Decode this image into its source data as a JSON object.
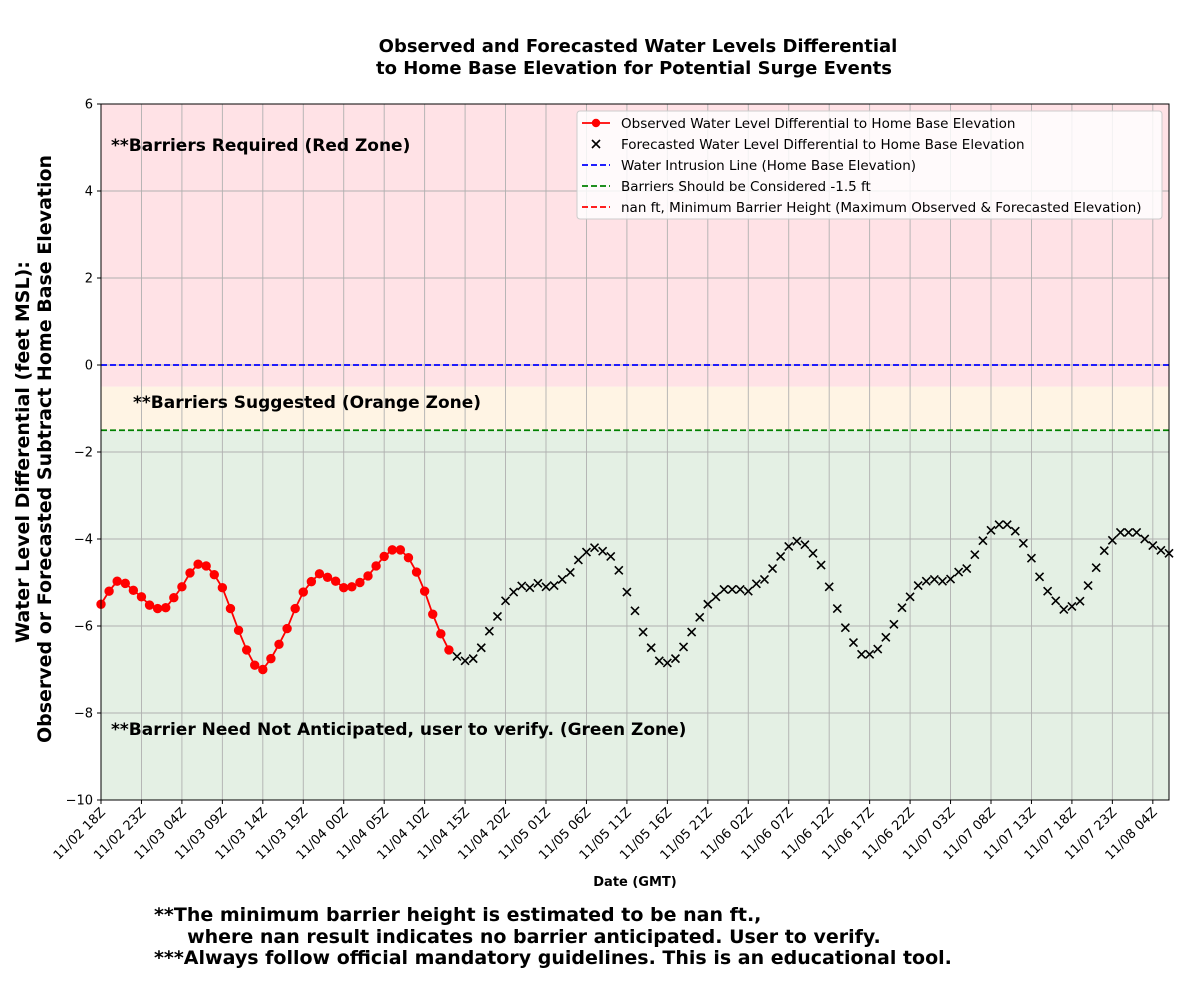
{
  "chart_data": {
    "type": "line",
    "title_lines": [
      "Observed and Forecasted Water Levels Differential",
      "to Home Base Elevation for Potential Surge Events"
    ],
    "xlabel": "Date (GMT)",
    "ylabel_lines": [
      "Water Level Differential (feet MSL):",
      "Observed or Forecasted Subtract Home Base Elevation"
    ],
    "ylim": [
      -10,
      6
    ],
    "yticks": [
      "6",
      "4",
      "2",
      "0",
      "−2",
      "−4",
      "−6",
      "−8",
      "−10"
    ],
    "x_range_hours": [
      0,
      132
    ],
    "xticks": [
      "11/02 18Z",
      "11/02 23Z",
      "11/03 04Z",
      "11/03 09Z",
      "11/03 14Z",
      "11/03 19Z",
      "11/04 00Z",
      "11/04 05Z",
      "11/04 10Z",
      "11/04 15Z",
      "11/04 20Z",
      "11/05 01Z",
      "11/05 06Z",
      "11/05 11Z",
      "11/05 16Z",
      "11/05 21Z",
      "11/06 02Z",
      "11/06 07Z",
      "11/06 12Z",
      "11/06 17Z",
      "11/06 22Z",
      "11/07 03Z",
      "11/07 08Z",
      "11/07 13Z",
      "11/07 18Z",
      "11/07 23Z",
      "11/08 04Z"
    ],
    "grid": true,
    "legend_position": "top-right",
    "zones": [
      {
        "label": "**Barriers Required (Red Zone)",
        "y_from": -0.5,
        "y_to": 6,
        "color": "#ffe2e6"
      },
      {
        "label": "**Barriers Suggested (Orange Zone)",
        "y_from": -1.5,
        "y_to": -0.5,
        "color": "#fff4e4"
      },
      {
        "label": "**Barrier Need Not Anticipated, user to verify. (Green Zone)",
        "y_from": -10,
        "y_to": -1.5,
        "color": "#e4f0e4"
      }
    ],
    "reference_lines": [
      {
        "name": "Water Intrusion Line (Home Base Elevation)",
        "y": 0,
        "color": "#0000ff"
      },
      {
        "name": "Barriers Should be Considered -1.5 ft",
        "y": -1.5,
        "color": "#008000"
      },
      {
        "name": "nan ft, Minimum Barrier Height (Maximum Observed & Forecasted Elevation)",
        "y": null,
        "color": "#ff0000"
      }
    ],
    "series": [
      {
        "name": "Observed Water Level Differential to Home Base Elevation",
        "color": "#ff0000",
        "marker": "circle",
        "x_start_hours": 0,
        "x_step_hours": 1,
        "values": [
          -5.5,
          -5.2,
          -4.97,
          -5.02,
          -5.18,
          -5.33,
          -5.52,
          -5.6,
          -5.58,
          -5.35,
          -5.1,
          -4.78,
          -4.58,
          -4.62,
          -4.82,
          -5.12,
          -5.6,
          -6.1,
          -6.55,
          -6.9,
          -7.0,
          -6.75,
          -6.42,
          -6.06,
          -5.6,
          -5.22,
          -4.98,
          -4.8,
          -4.88,
          -4.97,
          -5.12,
          -5.1,
          -5.0,
          -4.85,
          -4.62,
          -4.4,
          -4.25,
          -4.25,
          -4.43,
          -4.76,
          -5.2,
          -5.73,
          -6.18,
          -6.55
        ]
      },
      {
        "name": "Forecasted Water Level Differential to Home Base Elevation",
        "color": "#000000",
        "marker": "x",
        "x_start_hours": 44,
        "x_step_hours": 1,
        "values": [
          -6.7,
          -6.8,
          -6.75,
          -6.5,
          -6.12,
          -5.78,
          -5.42,
          -5.22,
          -5.08,
          -5.12,
          -5.02,
          -5.1,
          -5.07,
          -4.93,
          -4.77,
          -4.48,
          -4.3,
          -4.2,
          -4.28,
          -4.4,
          -4.72,
          -5.22,
          -5.65,
          -6.14,
          -6.5,
          -6.8,
          -6.85,
          -6.75,
          -6.48,
          -6.14,
          -5.8,
          -5.5,
          -5.33,
          -5.16,
          -5.16,
          -5.16,
          -5.2,
          -5.03,
          -4.93,
          -4.68,
          -4.4,
          -4.17,
          -4.05,
          -4.13,
          -4.33,
          -4.6,
          -5.1,
          -5.6,
          -6.04,
          -6.38,
          -6.65,
          -6.65,
          -6.53,
          -6.26,
          -5.96,
          -5.58,
          -5.33,
          -5.07,
          -4.97,
          -4.93,
          -4.97,
          -4.92,
          -4.76,
          -4.68,
          -4.36,
          -4.04,
          -3.8,
          -3.67,
          -3.67,
          -3.82,
          -4.1,
          -4.44,
          -4.87,
          -5.2,
          -5.42,
          -5.62,
          -5.55,
          -5.43,
          -5.07,
          -4.66,
          -4.27,
          -4.03,
          -3.85,
          -3.85,
          -3.85,
          -4.0,
          -4.15,
          -4.26,
          -4.33
        ]
      }
    ]
  },
  "footnotes": [
    "**The minimum barrier height is estimated to be nan ft.,",
    "     where nan result indicates no barrier anticipated. User to verify.",
    "***Always follow official mandatory guidelines. This is an educational tool."
  ]
}
